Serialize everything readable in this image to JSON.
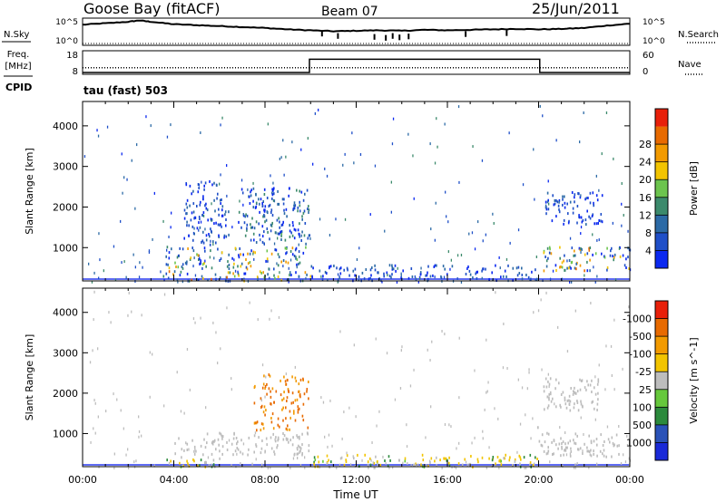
{
  "header": {
    "station": "Goose Bay (fitACF)",
    "beam": "Beam 07",
    "date": "25/Jun/2011",
    "cpid_label": "CPID",
    "cpid_value": "tau (fast) 503"
  },
  "chart_data": [
    {
      "type": "line",
      "name": "nsky-nsearch-strip",
      "left_labels": [
        "N.Sky"
      ],
      "right_labels": [
        "N.Search"
      ],
      "left_ticks": [
        "10^5",
        "10^0"
      ],
      "right_ticks": [
        "10^5",
        "10^0"
      ],
      "x_range_hours": [
        0,
        24
      ],
      "nsky_log10": [
        [
          0,
          4.0
        ],
        [
          1,
          4.3
        ],
        [
          2,
          4.6
        ],
        [
          2.5,
          4.9
        ],
        [
          3,
          4.6
        ],
        [
          4,
          4.1
        ],
        [
          5,
          3.9
        ],
        [
          6,
          3.7
        ],
        [
          7,
          3.5
        ],
        [
          8,
          3.3
        ],
        [
          9,
          3.0
        ],
        [
          10,
          2.8
        ],
        [
          11,
          2.6
        ],
        [
          12,
          2.7
        ],
        [
          13,
          2.8
        ],
        [
          14,
          2.7
        ],
        [
          15,
          2.9
        ],
        [
          16,
          2.8
        ],
        [
          17,
          2.9
        ],
        [
          18,
          3.0
        ],
        [
          19,
          3.1
        ],
        [
          20,
          3.0
        ],
        [
          21,
          3.1
        ],
        [
          22,
          3.3
        ],
        [
          23,
          3.8
        ],
        [
          24,
          4.2
        ]
      ],
      "nsky_spikes": [
        [
          10.5,
          1.5
        ],
        [
          11.2,
          1.0
        ],
        [
          12.8,
          0.8
        ],
        [
          13.3,
          0.6
        ],
        [
          13.6,
          1.0
        ],
        [
          13.9,
          0.7
        ],
        [
          14.3,
          0.9
        ],
        [
          16.8,
          1.4
        ],
        [
          18.6,
          1.6
        ]
      ]
    },
    {
      "type": "line",
      "name": "freq-nave-strip",
      "left_labels": [
        "Freq.",
        "[MHz]"
      ],
      "right_labels": [
        "Nave"
      ],
      "left_ticks": [
        "18",
        "8"
      ],
      "right_ticks": [
        "60",
        "0"
      ],
      "x_range_hours": [
        0,
        24
      ],
      "freq_mhz": [
        [
          0,
          10.4
        ],
        [
          24,
          10.4
        ]
      ],
      "nave": [
        [
          0,
          0
        ],
        [
          9.95,
          0
        ],
        [
          9.95,
          40
        ],
        [
          20.05,
          40
        ],
        [
          20.05,
          0
        ],
        [
          24,
          0
        ]
      ]
    },
    {
      "type": "heatmap",
      "name": "power",
      "ylabel": "Slant Range [km]",
      "xlabel": "",
      "y_ticks": [
        "1000",
        "2000",
        "3000",
        "4000"
      ],
      "y_range_km": [
        180,
        4600
      ],
      "x_range_hours": [
        0,
        24
      ],
      "colorbar_label": "Power [dB]",
      "colorbar_ticks": [
        "4",
        "8",
        "12",
        "16",
        "20",
        "24",
        "28"
      ],
      "colorbar_colors": [
        "#0a28f0",
        "#1f4fc8",
        "#2c6aa6",
        "#3c8a6c",
        "#6cc44e",
        "#f2c400",
        "#f29a00",
        "#e86a00",
        "#e8200a"
      ],
      "regions": [
        {
          "t0": 3.4,
          "t1": 10.0,
          "r0": 200,
          "r1": 450,
          "v0": 4,
          "v1": 30
        },
        {
          "t0": 3.6,
          "t1": 9.8,
          "r0": 500,
          "r1": 1050,
          "v0": 4,
          "v1": 26
        },
        {
          "t0": 4.4,
          "t1": 6.4,
          "r0": 1100,
          "r1": 2700,
          "v0": 4,
          "v1": 12
        },
        {
          "t0": 6.8,
          "t1": 9.9,
          "r0": 1100,
          "r1": 2500,
          "v0": 4,
          "v1": 16
        },
        {
          "t0": 20.0,
          "t1": 24.0,
          "r0": 450,
          "r1": 1050,
          "v0": 4,
          "v1": 28
        },
        {
          "t0": 20.2,
          "t1": 22.8,
          "r0": 1600,
          "r1": 2400,
          "v0": 4,
          "v1": 10
        },
        {
          "t0": 10.0,
          "t1": 20.0,
          "r0": 200,
          "r1": 600,
          "v0": 4,
          "v1": 12
        }
      ]
    },
    {
      "type": "heatmap",
      "name": "velocity",
      "ylabel": "Slant Range [km]",
      "xlabel": "Time UT",
      "y_ticks": [
        "1000",
        "2000",
        "3000",
        "4000"
      ],
      "y_range_km": [
        180,
        4600
      ],
      "x_range_hours": [
        0,
        24
      ],
      "x_ticks": [
        "00:00",
        "04:00",
        "08:00",
        "12:00",
        "16:00",
        "20:00",
        "00:00"
      ],
      "colorbar_label": "Velocity [m s^-1]",
      "colorbar_ticks": [
        "1000",
        "500",
        "100",
        "25",
        "-25",
        "-100",
        "-500",
        "-1000"
      ],
      "colorbar_colors": [
        "#1a2ad8",
        "#2a52b8",
        "#2c8a3c",
        "#66c83c",
        "#bdbdbd",
        "#f2c400",
        "#f29a00",
        "#e86a00",
        "#e8200a"
      ],
      "regions": [
        {
          "t0": 4.0,
          "t1": 9.9,
          "r0": 500,
          "r1": 1050,
          "v0": -25,
          "v1": 25
        },
        {
          "t0": 3.5,
          "t1": 6.0,
          "r0": 200,
          "r1": 450,
          "v0": -100,
          "v1": 100
        },
        {
          "t0": 7.5,
          "t1": 9.9,
          "r0": 1100,
          "r1": 2500,
          "v0": -500,
          "v1": -100
        },
        {
          "t0": 20.0,
          "t1": 23.5,
          "r0": 450,
          "r1": 1050,
          "v0": -25,
          "v1": 25
        },
        {
          "t0": 20.2,
          "t1": 22.6,
          "r0": 1600,
          "r1": 2400,
          "v0": -25,
          "v1": 25
        },
        {
          "t0": 10.0,
          "t1": 20.0,
          "r0": 200,
          "r1": 500,
          "v0": -100,
          "v1": 100
        }
      ]
    }
  ]
}
